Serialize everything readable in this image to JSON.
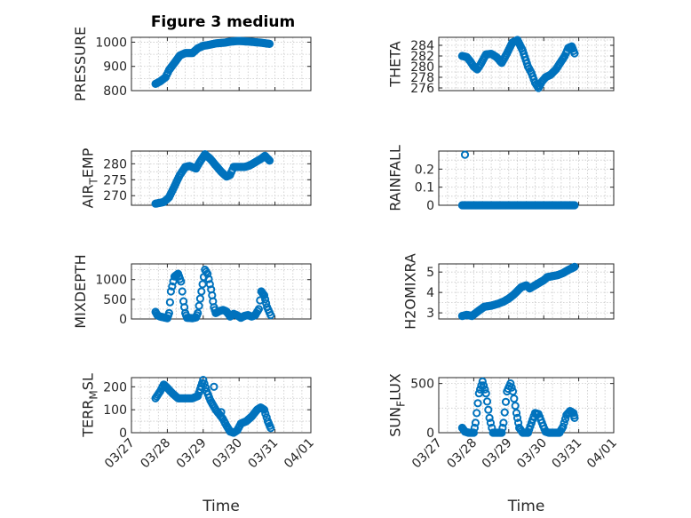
{
  "figure": {
    "title": "Figure 3 medium",
    "marker_color": "#0072bd",
    "x_tick_labels": [
      "03/27",
      "03/28",
      "03/29",
      "03/30",
      "03/31",
      "04/01"
    ],
    "x_label": "Time"
  },
  "chart_data": [
    {
      "type": "scatter",
      "id": "pressure",
      "ylabel": [
        "PRESSURE"
      ],
      "ylim": [
        800,
        1020
      ],
      "yticks": [
        800,
        900,
        1000
      ],
      "x_unit": "days since 03/27",
      "keypoints": [
        [
          0.67,
          828
        ],
        [
          0.8,
          838
        ],
        [
          0.95,
          855
        ],
        [
          1.05,
          885
        ],
        [
          1.2,
          915
        ],
        [
          1.35,
          945
        ],
        [
          1.5,
          955
        ],
        [
          1.7,
          955
        ],
        [
          1.85,
          975
        ],
        [
          2.0,
          985
        ],
        [
          2.2,
          990
        ],
        [
          2.35,
          995
        ],
        [
          2.6,
          998
        ],
        [
          2.8,
          1003
        ],
        [
          3.0,
          1005
        ],
        [
          3.3,
          1002
        ],
        [
          3.6,
          998
        ],
        [
          3.85,
          993
        ]
      ]
    },
    {
      "type": "scatter",
      "id": "theta",
      "ylabel": [
        "THETA"
      ],
      "ylim": [
        275.5,
        285.5
      ],
      "yticks": [
        276,
        278,
        280,
        282,
        284
      ],
      "x_unit": "days since 03/27",
      "keypoints": [
        [
          0.67,
          282
        ],
        [
          0.8,
          281.8
        ],
        [
          0.9,
          281
        ],
        [
          1.0,
          280
        ],
        [
          1.1,
          279.5
        ],
        [
          1.2,
          280.5
        ],
        [
          1.35,
          282.3
        ],
        [
          1.5,
          282.4
        ],
        [
          1.65,
          281.8
        ],
        [
          1.8,
          280.7
        ],
        [
          1.95,
          282.5
        ],
        [
          2.1,
          284.5
        ],
        [
          2.25,
          285
        ],
        [
          2.4,
          283
        ],
        [
          2.55,
          280
        ],
        [
          2.65,
          278.8
        ],
        [
          2.75,
          277
        ],
        [
          2.85,
          276
        ],
        [
          2.95,
          277.2
        ],
        [
          3.05,
          278
        ],
        [
          3.2,
          278.5
        ],
        [
          3.35,
          279.5
        ],
        [
          3.45,
          280.5
        ],
        [
          3.6,
          282
        ],
        [
          3.7,
          283.5
        ],
        [
          3.8,
          283.8
        ],
        [
          3.88,
          282.5
        ]
      ]
    },
    {
      "type": "scatter",
      "id": "air_temp",
      "ylabel": [
        "AIR",
        "T",
        "EMP"
      ],
      "ylim": [
        267,
        284
      ],
      "yticks": [
        270,
        275,
        280
      ],
      "x_unit": "days since 03/27",
      "keypoints": [
        [
          0.67,
          267.5
        ],
        [
          0.9,
          268
        ],
        [
          1.05,
          269.5
        ],
        [
          1.2,
          273
        ],
        [
          1.35,
          276.5
        ],
        [
          1.5,
          279
        ],
        [
          1.62,
          279.3
        ],
        [
          1.8,
          278.5
        ],
        [
          1.9,
          280.5
        ],
        [
          2.05,
          283
        ],
        [
          2.2,
          281.5
        ],
        [
          2.35,
          279.5
        ],
        [
          2.5,
          277.5
        ],
        [
          2.65,
          276
        ],
        [
          2.75,
          276.5
        ],
        [
          2.85,
          279
        ],
        [
          3.0,
          279
        ],
        [
          3.15,
          279
        ],
        [
          3.3,
          279.5
        ],
        [
          3.45,
          280.5
        ],
        [
          3.6,
          281.5
        ],
        [
          3.72,
          282.5
        ],
        [
          3.85,
          281
        ]
      ]
    },
    {
      "type": "scatter",
      "id": "rainfall",
      "ylabel": [
        "RAINFALL"
      ],
      "ylim": [
        0,
        0.3
      ],
      "yticks": [
        0,
        0.1,
        0.2
      ],
      "x_unit": "days since 03/27",
      "keypoints": [
        [
          0.67,
          0
        ],
        [
          3.88,
          0
        ]
      ],
      "outliers": [
        [
          0.75,
          0.28
        ]
      ]
    },
    {
      "type": "scatter",
      "id": "mixdepth",
      "ylabel": [
        "MIXDEPTH"
      ],
      "ylim": [
        0,
        1400
      ],
      "yticks": [
        0,
        500,
        1000
      ],
      "x_unit": "days since 03/27",
      "keypoints": [
        [
          0.67,
          180
        ],
        [
          0.72,
          100
        ],
        [
          0.8,
          60
        ],
        [
          0.9,
          40
        ],
        [
          1.0,
          20
        ],
        [
          1.05,
          150
        ],
        [
          1.1,
          700
        ],
        [
          1.2,
          1080
        ],
        [
          1.3,
          1150
        ],
        [
          1.38,
          950
        ],
        [
          1.45,
          450
        ],
        [
          1.5,
          150
        ],
        [
          1.55,
          30
        ],
        [
          1.7,
          20
        ],
        [
          1.8,
          40
        ],
        [
          1.85,
          150
        ],
        [
          1.95,
          700
        ],
        [
          2.05,
          1250
        ],
        [
          2.12,
          1150
        ],
        [
          2.22,
          750
        ],
        [
          2.3,
          300
        ],
        [
          2.35,
          150
        ],
        [
          2.45,
          200
        ],
        [
          2.55,
          230
        ],
        [
          2.65,
          190
        ],
        [
          2.75,
          60
        ],
        [
          2.85,
          130
        ],
        [
          2.95,
          90
        ],
        [
          3.05,
          30
        ],
        [
          3.15,
          80
        ],
        [
          3.25,
          100
        ],
        [
          3.35,
          60
        ],
        [
          3.45,
          100
        ],
        [
          3.55,
          250
        ],
        [
          3.62,
          700
        ],
        [
          3.7,
          600
        ],
        [
          3.78,
          300
        ],
        [
          3.88,
          100
        ]
      ]
    },
    {
      "type": "scatter",
      "id": "h2omixra",
      "ylabel": [
        "H2OMIXRA"
      ],
      "ylim": [
        2.7,
        5.4
      ],
      "yticks": [
        3,
        4,
        5
      ],
      "x_unit": "days since 03/27",
      "keypoints": [
        [
          0.67,
          2.85
        ],
        [
          0.8,
          2.9
        ],
        [
          0.95,
          2.85
        ],
        [
          1.1,
          3.05
        ],
        [
          1.3,
          3.3
        ],
        [
          1.5,
          3.35
        ],
        [
          1.7,
          3.45
        ],
        [
          1.85,
          3.55
        ],
        [
          2.0,
          3.7
        ],
        [
          2.15,
          3.9
        ],
        [
          2.35,
          4.25
        ],
        [
          2.5,
          4.35
        ],
        [
          2.6,
          4.2
        ],
        [
          2.7,
          4.3
        ],
        [
          2.85,
          4.45
        ],
        [
          3.0,
          4.6
        ],
        [
          3.1,
          4.75
        ],
        [
          3.25,
          4.8
        ],
        [
          3.4,
          4.85
        ],
        [
          3.55,
          4.95
        ],
        [
          3.7,
          5.1
        ],
        [
          3.88,
          5.25
        ]
      ]
    },
    {
      "type": "scatter",
      "id": "terr_msl",
      "ylabel": [
        "TERR",
        "M",
        "SL"
      ],
      "ylim": [
        0,
        240
      ],
      "yticks": [
        0,
        100,
        200
      ],
      "x_unit": "days since 03/27",
      "keypoints": [
        [
          0.67,
          150
        ],
        [
          0.8,
          180
        ],
        [
          0.9,
          210
        ],
        [
          1.0,
          195
        ],
        [
          1.15,
          170
        ],
        [
          1.3,
          150
        ],
        [
          1.5,
          150
        ],
        [
          1.7,
          150
        ],
        [
          1.85,
          160
        ],
        [
          2.0,
          230
        ],
        [
          2.1,
          180
        ],
        [
          2.2,
          140
        ],
        [
          2.35,
          100
        ],
        [
          2.45,
          80
        ],
        [
          2.55,
          60
        ],
        [
          2.65,
          30
        ],
        [
          2.75,
          5
        ],
        [
          2.85,
          0
        ],
        [
          2.95,
          10
        ],
        [
          3.05,
          40
        ],
        [
          3.2,
          50
        ],
        [
          3.35,
          70
        ],
        [
          3.5,
          100
        ],
        [
          3.6,
          110
        ],
        [
          3.7,
          100
        ],
        [
          3.8,
          50
        ],
        [
          3.88,
          20
        ]
      ],
      "outliers": [
        [
          2.3,
          200
        ],
        [
          2.5,
          90
        ]
      ]
    },
    {
      "type": "scatter",
      "id": "sun_flux",
      "ylabel": [
        "SUN",
        "F",
        "LUX"
      ],
      "ylim": [
        0,
        560
      ],
      "yticks": [
        0,
        500
      ],
      "x_unit": "days since 03/27",
      "keypoints": [
        [
          0.67,
          50
        ],
        [
          0.75,
          10
        ],
        [
          0.85,
          0
        ],
        [
          1.0,
          0
        ],
        [
          1.05,
          100
        ],
        [
          1.15,
          400
        ],
        [
          1.25,
          520
        ],
        [
          1.35,
          400
        ],
        [
          1.45,
          150
        ],
        [
          1.55,
          0
        ],
        [
          1.8,
          0
        ],
        [
          1.85,
          100
        ],
        [
          1.95,
          420
        ],
        [
          2.05,
          500
        ],
        [
          2.12,
          420
        ],
        [
          2.22,
          200
        ],
        [
          2.3,
          50
        ],
        [
          2.4,
          0
        ],
        [
          2.55,
          0
        ],
        [
          2.65,
          100
        ],
        [
          2.75,
          200
        ],
        [
          2.85,
          190
        ],
        [
          2.95,
          100
        ],
        [
          3.05,
          10
        ],
        [
          3.15,
          0
        ],
        [
          3.3,
          0
        ],
        [
          3.45,
          0
        ],
        [
          3.55,
          60
        ],
        [
          3.65,
          180
        ],
        [
          3.75,
          220
        ],
        [
          3.85,
          200
        ],
        [
          3.88,
          150
        ]
      ]
    }
  ]
}
